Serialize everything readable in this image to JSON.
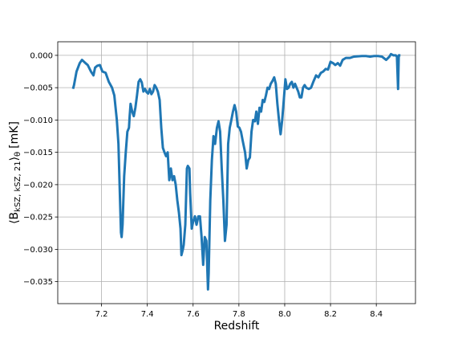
{
  "chart_data": {
    "type": "line",
    "xlabel": "Redshift",
    "ylabel": {
      "text": "⟨B",
      "sub": "kSZ, kSZ, 21",
      "close": "⟩",
      "sub2": "θ",
      "unit": "[mK]"
    },
    "xlim": [
      7.009,
      8.571
    ],
    "ylim": [
      -0.0384,
      0.0021
    ],
    "xticks": [
      7.2,
      7.4,
      7.6,
      7.8,
      {
        "value": 8,
        "label": "8.0"
      },
      8.2,
      8.4
    ],
    "yticks": [
      {
        "value": 0,
        "label": "0.000"
      },
      {
        "value": -0.005,
        "label": "−0.005"
      },
      {
        "value": -0.01,
        "label": "−0.010"
      },
      {
        "value": -0.015,
        "label": "−0.015"
      },
      {
        "value": -0.02,
        "label": "−0.020"
      },
      {
        "value": -0.025,
        "label": "−0.025"
      },
      {
        "value": -0.03,
        "label": "−0.030"
      },
      {
        "value": -0.035,
        "label": "−0.035"
      }
    ],
    "grid": true,
    "x": [
      7.077,
      7.08,
      7.091,
      7.105,
      7.115,
      7.13,
      7.14,
      7.154,
      7.165,
      7.172,
      7.182,
      7.193,
      7.204,
      7.218,
      7.232,
      7.246,
      7.256,
      7.267,
      7.274,
      7.281,
      7.285,
      7.288,
      7.292,
      7.299,
      7.306,
      7.313,
      7.32,
      7.323,
      7.327,
      7.334,
      7.341,
      7.348,
      7.355,
      7.362,
      7.369,
      7.376,
      7.383,
      7.39,
      7.397,
      7.404,
      7.411,
      7.418,
      7.425,
      7.432,
      7.439,
      7.446,
      7.454,
      7.461,
      7.468,
      7.475,
      7.482,
      7.489,
      7.496,
      7.503,
      7.51,
      7.517,
      7.524,
      7.531,
      7.538,
      7.545,
      7.549,
      7.556,
      7.559,
      7.566,
      7.573,
      7.577,
      7.584,
      7.587,
      7.594,
      7.601,
      7.608,
      7.615,
      7.623,
      7.63,
      7.637,
      7.644,
      7.651,
      7.658,
      7.665,
      7.668,
      7.675,
      7.682,
      7.689,
      7.696,
      7.704,
      7.711,
      7.718,
      7.725,
      7.732,
      7.739,
      7.746,
      7.753,
      7.76,
      7.767,
      7.774,
      7.781,
      7.788,
      7.795,
      7.802,
      7.809,
      7.816,
      7.827,
      7.834,
      7.841,
      7.848,
      7.855,
      7.862,
      7.87,
      7.876,
      7.883,
      7.89,
      7.897,
      7.904,
      7.911,
      7.918,
      7.925,
      7.932,
      7.939,
      7.946,
      7.954,
      7.961,
      7.968,
      7.975,
      7.982,
      7.989,
      7.996,
      8.003,
      8.01,
      8.017,
      8.024,
      8.031,
      8.038,
      8.045,
      8.052,
      8.059,
      8.066,
      8.073,
      8.08,
      8.087,
      8.094,
      8.105,
      8.115,
      8.126,
      8.137,
      8.147,
      8.158,
      8.168,
      8.179,
      8.189,
      8.2,
      8.211,
      8.221,
      8.232,
      8.242,
      8.253,
      8.267,
      8.285,
      8.302,
      8.337,
      8.355,
      8.373,
      8.39,
      8.408,
      8.425,
      8.443,
      8.457,
      8.464,
      8.475,
      8.485,
      8.49,
      8.495,
      8.498,
      8.5
    ],
    "series": [
      {
        "color": "#1f77b4",
        "values": [
          -0.005,
          -0.0046,
          -0.0025,
          -0.0012,
          -0.0007,
          -0.0012,
          -0.0015,
          -0.0025,
          -0.0031,
          -0.0019,
          -0.0016,
          -0.0015,
          -0.0025,
          -0.0027,
          -0.0041,
          -0.005,
          -0.0062,
          -0.01,
          -0.0137,
          -0.0224,
          -0.0274,
          -0.0281,
          -0.0262,
          -0.0187,
          -0.015,
          -0.0118,
          -0.0112,
          -0.0094,
          -0.0075,
          -0.0087,
          -0.0094,
          -0.0081,
          -0.0062,
          -0.0041,
          -0.0037,
          -0.0042,
          -0.0056,
          -0.0052,
          -0.0057,
          -0.0059,
          -0.0052,
          -0.006,
          -0.0056,
          -0.0046,
          -0.005,
          -0.0056,
          -0.0069,
          -0.0112,
          -0.0143,
          -0.015,
          -0.0156,
          -0.015,
          -0.0193,
          -0.0175,
          -0.0193,
          -0.0187,
          -0.02,
          -0.0224,
          -0.0243,
          -0.0268,
          -0.0309,
          -0.0299,
          -0.0293,
          -0.0262,
          -0.0175,
          -0.0171,
          -0.0175,
          -0.0212,
          -0.0268,
          -0.0256,
          -0.0249,
          -0.0262,
          -0.0249,
          -0.0249,
          -0.0281,
          -0.0324,
          -0.0281,
          -0.0287,
          -0.0362,
          -0.0337,
          -0.0224,
          -0.0162,
          -0.0125,
          -0.0137,
          -0.0112,
          -0.0102,
          -0.0118,
          -0.0175,
          -0.0224,
          -0.0287,
          -0.0262,
          -0.0137,
          -0.0112,
          -0.01,
          -0.0087,
          -0.0077,
          -0.0087,
          -0.011,
          -0.0112,
          -0.0118,
          -0.0131,
          -0.015,
          -0.0175,
          -0.0162,
          -0.0158,
          -0.0118,
          -0.01,
          -0.0102,
          -0.0087,
          -0.0106,
          -0.0081,
          -0.0087,
          -0.0069,
          -0.0072,
          -0.0062,
          -0.005,
          -0.0052,
          -0.0044,
          -0.004,
          -0.0034,
          -0.0044,
          -0.0075,
          -0.01,
          -0.0122,
          -0.01,
          -0.0069,
          -0.0037,
          -0.0052,
          -0.005,
          -0.0044,
          -0.0041,
          -0.005,
          -0.0044,
          -0.005,
          -0.0056,
          -0.0065,
          -0.0065,
          -0.005,
          -0.0046,
          -0.005,
          -0.0052,
          -0.005,
          -0.004,
          -0.0031,
          -0.0034,
          -0.0027,
          -0.0025,
          -0.0021,
          -0.0022,
          -0.001,
          -0.0012,
          -0.0015,
          -0.0012,
          -0.0016,
          -0.0007,
          -0.0004,
          -0.0004,
          -0.0002,
          -0.0001,
          -0.0001,
          -0.0002,
          -0.0001,
          -0.0001,
          -0.0002,
          -0.0007,
          -0.0002,
          0.0002,
          0,
          0,
          -0.0002,
          -0.0052,
          0,
          0
        ]
      }
    ]
  }
}
